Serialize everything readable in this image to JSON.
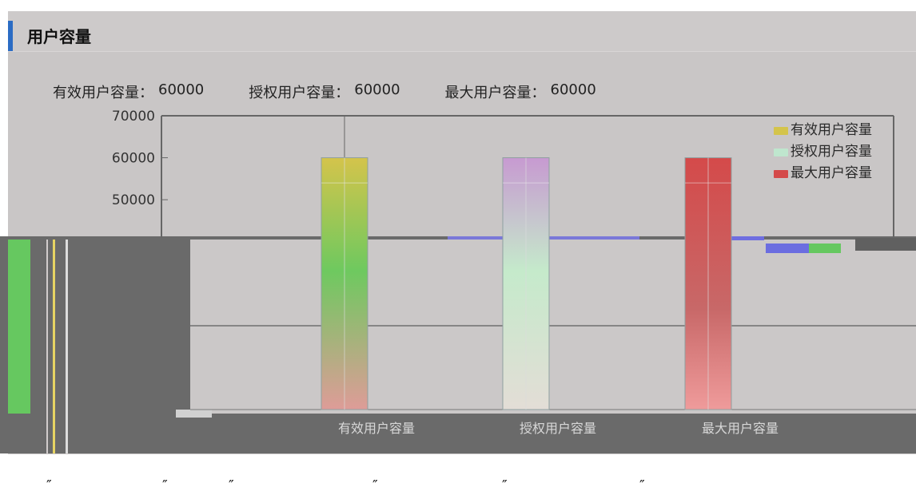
{
  "panel": {
    "title": "用户容量"
  },
  "stats": {
    "effective_label": "有效用户容量：",
    "effective_value": "60000",
    "authorized_label": "授权用户容量：",
    "authorized_value": "60000",
    "max_label": "最大用户容量：",
    "max_value": "60000"
  },
  "chart_data": {
    "type": "bar",
    "categories": [
      "有效用户容量",
      "授权用户容量",
      "最大用户容量"
    ],
    "values": [
      60000,
      60000,
      60000
    ],
    "ylim": [
      0,
      70000
    ],
    "yticks": [
      0,
      10000,
      20000,
      30000,
      40000,
      50000,
      60000,
      70000
    ],
    "yticks_text": [
      "",
      "",
      "",
      "",
      "",
      "50000",
      "60000",
      "70000"
    ],
    "colors": [
      "#d4c44b",
      "#bfe6ce",
      "#d44a4a"
    ],
    "legend": [
      "有效用户容量",
      "授权用户容量",
      "最大用户容量"
    ],
    "legend_position": "top-right",
    "grid": false
  },
  "footer": {
    "marks": [
      "″",
      "″",
      "″",
      "″",
      "″",
      "″"
    ]
  }
}
